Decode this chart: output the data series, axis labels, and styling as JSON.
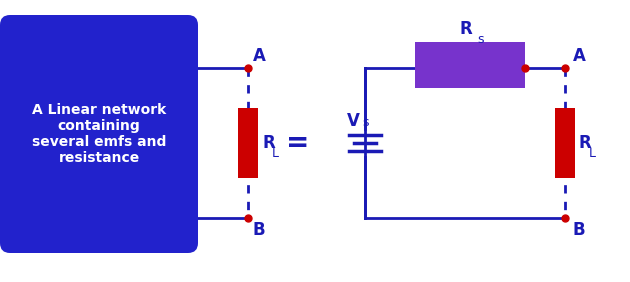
{
  "bg_color": "#ffffff",
  "box_color": "#2222cc",
  "box_text": "A Linear network\ncontaining\nseveral emfs and\nresistance",
  "box_text_color": "#ffffff",
  "circuit_color": "#1a1ab5",
  "resistor_color": "#cc0000",
  "resistor_th_color": "#7733cc",
  "dot_color": "#cc0000",
  "label_color": "#1a1ab5",
  "equal_sign": "=",
  "label_A": "A",
  "label_B": "B",
  "label_RL": "R",
  "label_RL_sub": "L",
  "label_Rs": "R",
  "label_Rs_sub": "s",
  "label_Vs": "V",
  "label_Vs_sub": "s"
}
